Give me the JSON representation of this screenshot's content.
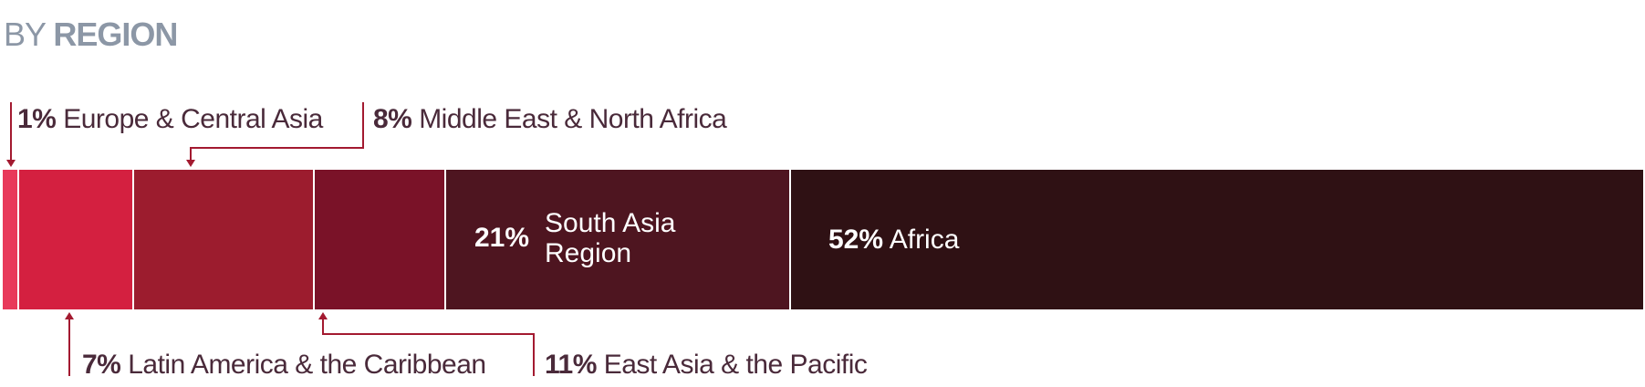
{
  "title": {
    "prefix": "BY",
    "main": "REGION"
  },
  "chart_data": {
    "type": "bar",
    "orientation": "horizontal-stacked",
    "unit": "%",
    "series": [
      {
        "name": "Europe & Central Asia",
        "value": 1,
        "color": "#e8395a"
      },
      {
        "name": "Latin America & the Caribbean",
        "value": 7,
        "color": "#d42040"
      },
      {
        "name": "East Asia & the Pacific",
        "value": 11,
        "color": "#9c1c2e"
      },
      {
        "name": "Middle East & North Africa",
        "value": 8,
        "color": "#7a1228"
      },
      {
        "name": "South Asia Region",
        "value": 21,
        "color": "#4e1520"
      },
      {
        "name": "Africa",
        "value": 52,
        "color": "#2f1114"
      }
    ]
  }
}
